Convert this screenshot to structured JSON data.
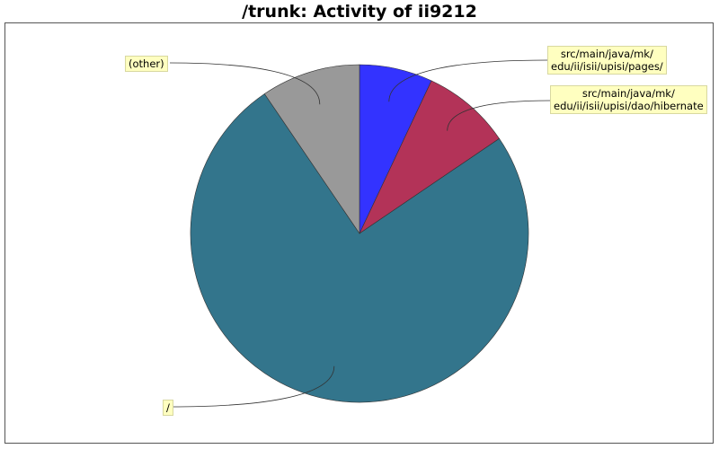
{
  "chart_data": {
    "type": "pie",
    "title": "/trunk: Activity of ii9212",
    "start_angle_deg": 90,
    "direction": "clockwise",
    "slices": [
      {
        "label": "src/main/java/mk/ edu/ii/isii/upisi/pages/",
        "lines": [
          "src/main/java/mk/",
          "edu/ii/isii/upisi/pages/"
        ],
        "value": 7.0,
        "color": "#3333ff"
      },
      {
        "label": "src/main/java/mk/ edu/ii/isii/upisi/dao/hibernate",
        "lines": [
          "src/main/java/mk/",
          "edu/ii/isii/upisi/dao/hibernate"
        ],
        "value": 8.5,
        "color": "#b33358"
      },
      {
        "label": "/",
        "lines": [
          "/"
        ],
        "value": 75.0,
        "color": "#33758c"
      },
      {
        "label": "(other)",
        "lines": [
          "(other)"
        ],
        "value": 9.5,
        "color": "#999999"
      }
    ],
    "legend": "callout-labels",
    "grid": false
  }
}
